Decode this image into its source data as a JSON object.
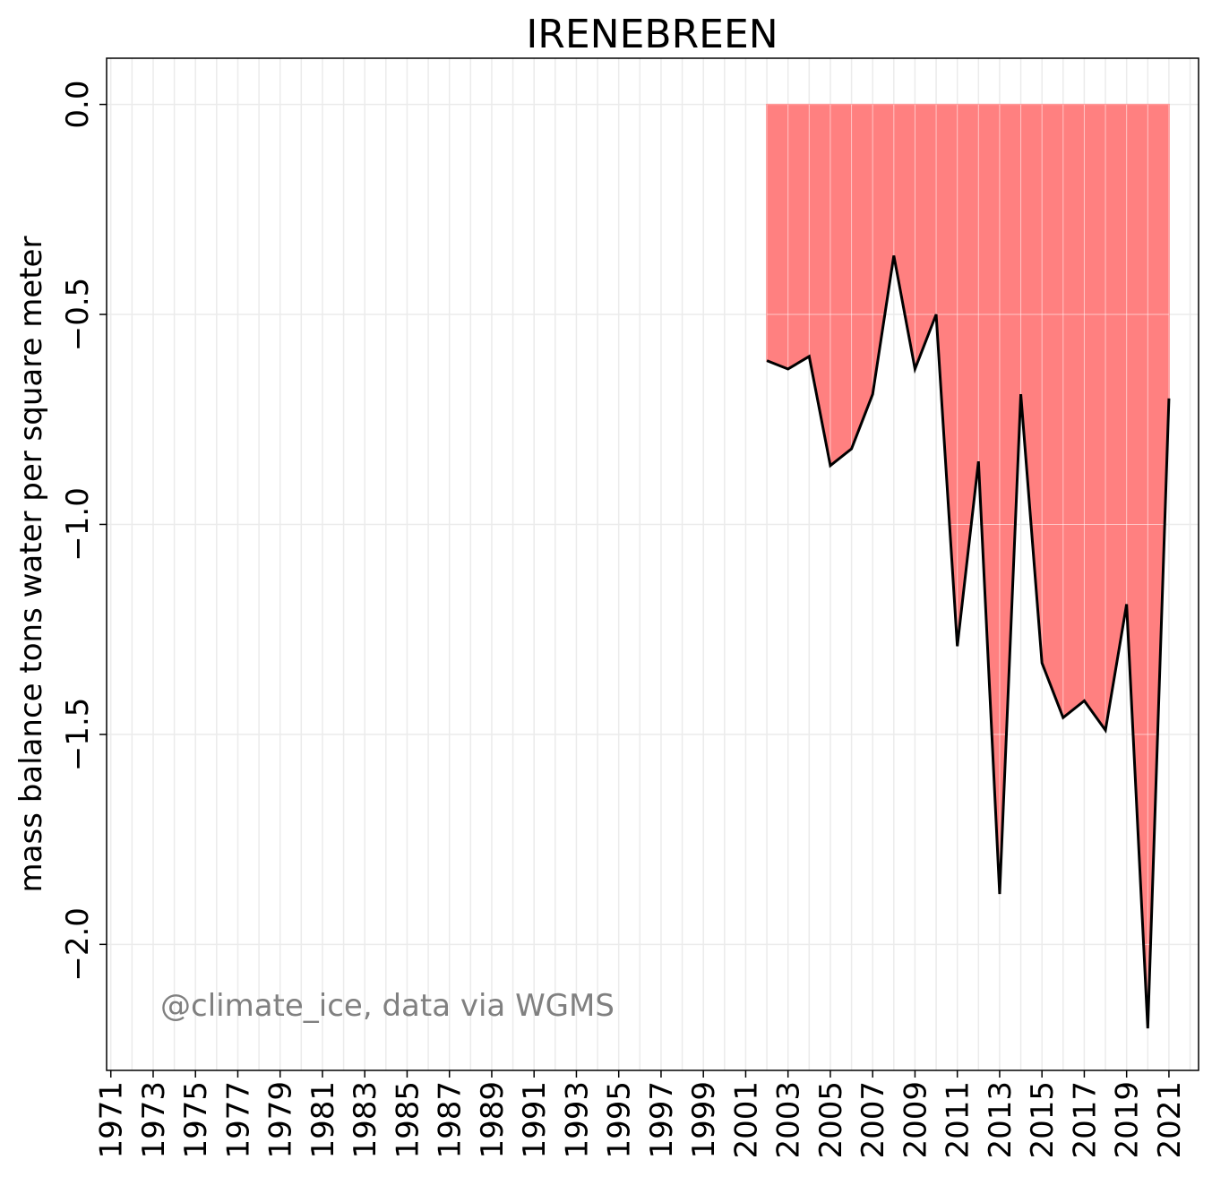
{
  "chart_data": {
    "type": "area",
    "title": "IRENEBREEN",
    "xlabel": "",
    "ylabel": "mass balance tons water per square meter",
    "credit": "@climate_ice, data via WGMS",
    "xlim": [
      1970.8,
      2022.4
    ],
    "ylim": [
      -2.3,
      0.11
    ],
    "x_ticks": [
      1971,
      1973,
      1975,
      1977,
      1979,
      1981,
      1983,
      1985,
      1987,
      1989,
      1991,
      1993,
      1995,
      1997,
      1999,
      2001,
      2003,
      2005,
      2007,
      2009,
      2011,
      2013,
      2015,
      2017,
      2019,
      2021
    ],
    "y_ticks": [
      0.0,
      -0.5,
      -1.0,
      -1.5,
      -2.0
    ],
    "y_tick_labels": [
      "0.0",
      "−0.5",
      "−1.0",
      "−1.5",
      "−2.0"
    ],
    "grid": true,
    "fill_color": "#ff8080",
    "line_color": "#000000",
    "x": [
      2002,
      2003,
      2004,
      2005,
      2006,
      2007,
      2008,
      2009,
      2010,
      2011,
      2012,
      2013,
      2014,
      2015,
      2016,
      2017,
      2018,
      2019,
      2020,
      2021
    ],
    "values": [
      -0.61,
      -0.63,
      -0.6,
      -0.86,
      -0.82,
      -0.69,
      -0.36,
      -0.63,
      -0.5,
      -1.29,
      -0.85,
      -1.88,
      -0.69,
      -1.33,
      -1.46,
      -1.42,
      -1.49,
      -1.19,
      -2.2,
      -0.7
    ]
  }
}
